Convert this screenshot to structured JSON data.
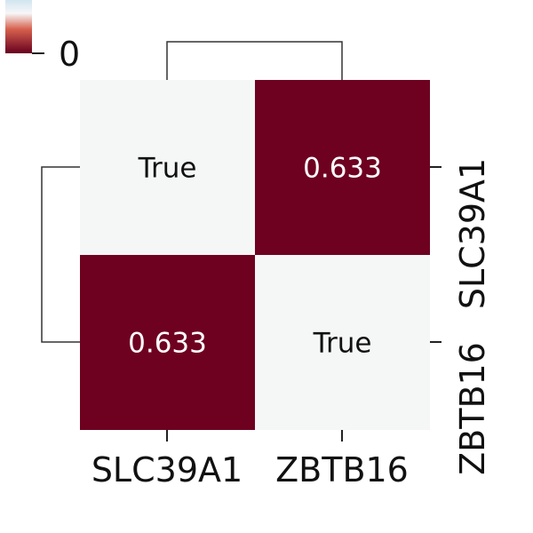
{
  "chart_data": {
    "type": "heatmap",
    "rows": [
      "SLC39A1",
      "ZBTB16"
    ],
    "columns": [
      "SLC39A1",
      "ZBTB16"
    ],
    "values": [
      [
        null,
        0.633
      ],
      [
        0.633,
        null
      ]
    ],
    "cell_labels": [
      [
        "True",
        "0.633"
      ],
      [
        "0.633",
        "True"
      ]
    ],
    "colorbar": {
      "tick_label": "0",
      "tick_value": 0
    },
    "row_dendrogram": true,
    "col_dendrogram": true,
    "colormap": [
      "#67001f",
      "#f5f6f6",
      "#d1e5f0"
    ],
    "colors": {
      "high": "#6e0020",
      "neutral": "#f5f6f6",
      "label_on_dark": "#ffffff",
      "label_on_light": "#111111"
    }
  }
}
